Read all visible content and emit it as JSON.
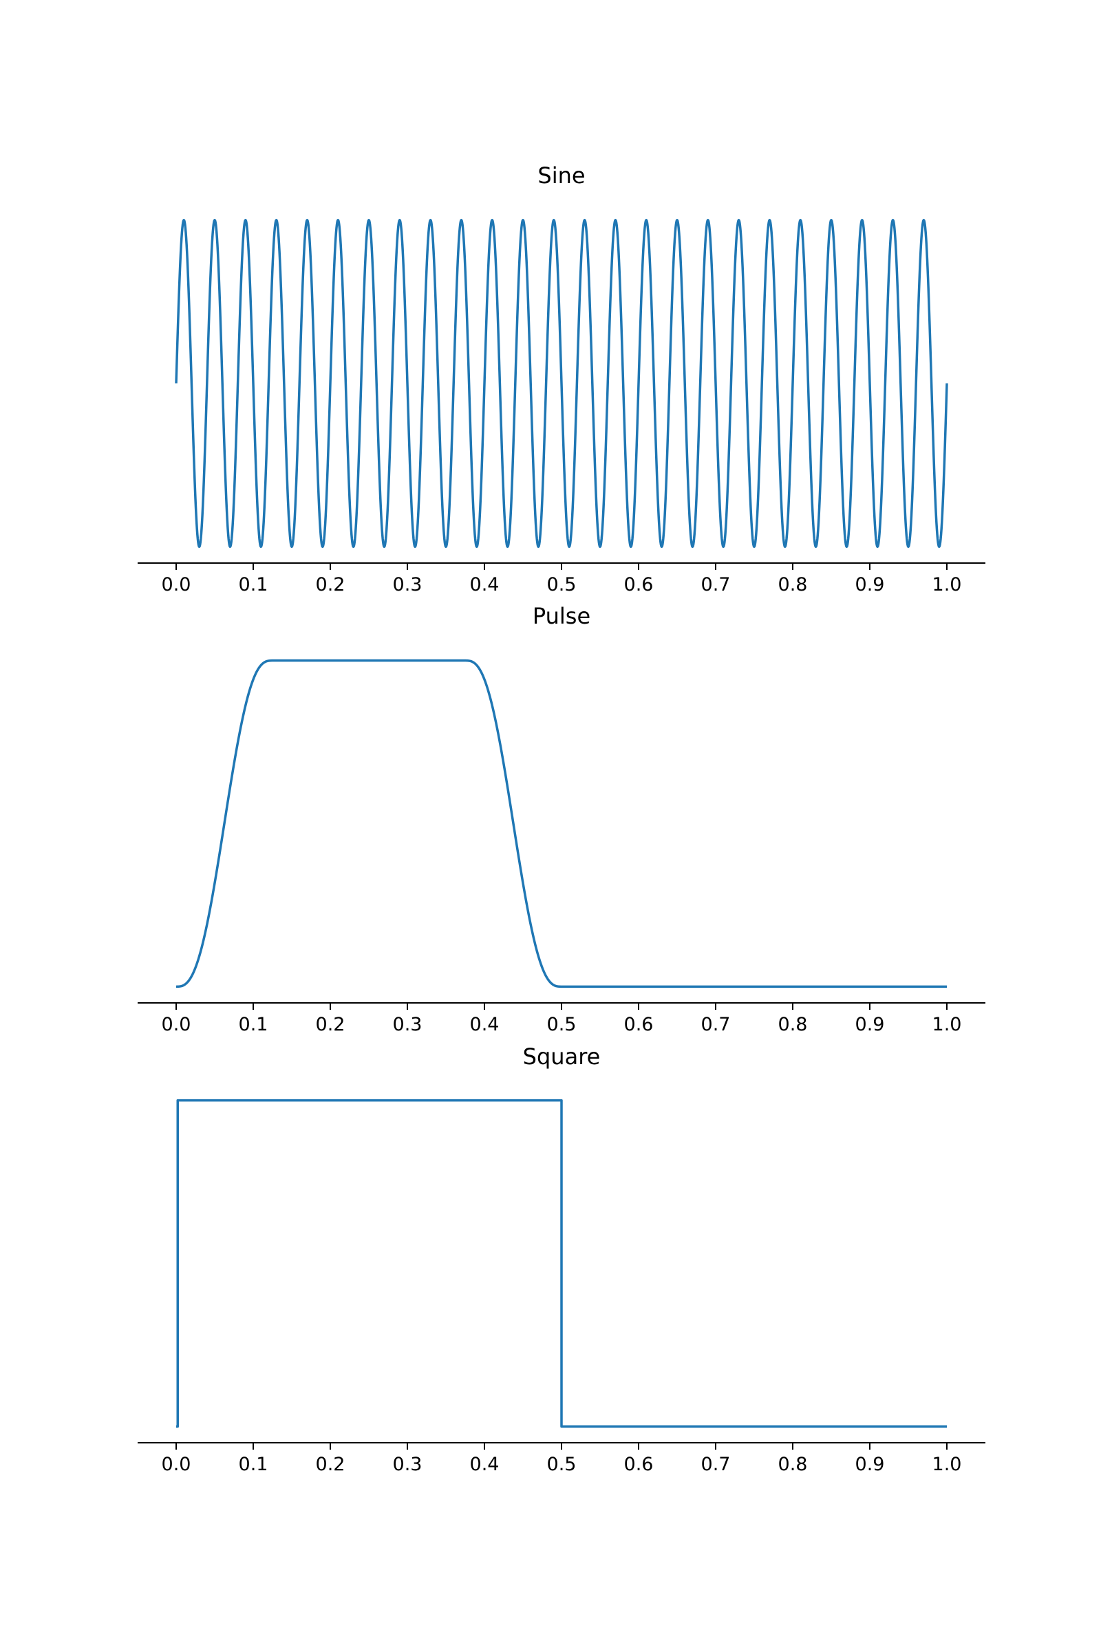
{
  "figure": {
    "background": "#ffffff",
    "line_color": "#1f77b4",
    "axis_color": "#000000"
  },
  "chart_data": [
    {
      "type": "line",
      "title": "Sine",
      "xlabel": "",
      "ylabel": "",
      "xlim": [
        -0.05,
        1.05
      ],
      "ylim": [
        -1.1,
        1.1
      ],
      "xticks": [
        "0.0",
        "0.1",
        "0.2",
        "0.3",
        "0.4",
        "0.5",
        "0.6",
        "0.7",
        "0.8",
        "0.9",
        "1.0"
      ],
      "yaxis_visible": false,
      "grid": false,
      "series": [
        {
          "name": "sine",
          "function": "sin",
          "frequency": 25,
          "amplitude": 1,
          "x_range": [
            0,
            1
          ],
          "samples": 2000
        }
      ]
    },
    {
      "type": "line",
      "title": "Pulse",
      "xlabel": "",
      "ylabel": "",
      "xlim": [
        -0.05,
        1.05
      ],
      "ylim": [
        -0.05,
        1.05
      ],
      "xticks": [
        "0.0",
        "0.1",
        "0.2",
        "0.3",
        "0.4",
        "0.5",
        "0.6",
        "0.7",
        "0.8",
        "0.9",
        "1.0"
      ],
      "yaxis_visible": false,
      "grid": false,
      "series": [
        {
          "name": "pulse",
          "function": "pulse",
          "high_start": 0.125,
          "high_end": 0.375,
          "rise_start": 0.0,
          "fall_end": 0.5,
          "x_range": [
            0,
            1
          ],
          "samples": 1000
        }
      ]
    },
    {
      "type": "line",
      "title": "Square",
      "xlabel": "",
      "ylabel": "",
      "xlim": [
        -0.05,
        1.05
      ],
      "ylim": [
        -0.05,
        1.05
      ],
      "xticks": [
        "0.0",
        "0.1",
        "0.2",
        "0.3",
        "0.4",
        "0.5",
        "0.6",
        "0.7",
        "0.8",
        "0.9",
        "1.0"
      ],
      "yaxis_visible": false,
      "grid": false,
      "series": [
        {
          "name": "square",
          "function": "square",
          "x": [
            0.0,
            0.002,
            0.002,
            0.5,
            0.5,
            1.0
          ],
          "y": [
            0,
            0,
            1,
            1,
            0,
            0
          ]
        }
      ]
    }
  ]
}
